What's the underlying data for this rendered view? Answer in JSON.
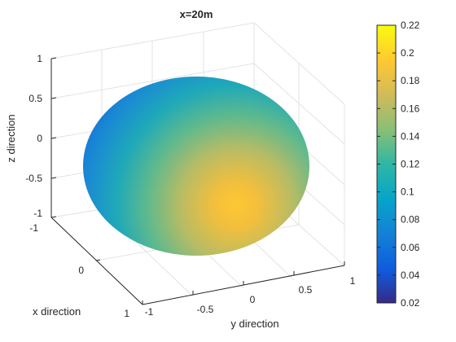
{
  "chart_data": {
    "type": "surface",
    "title": "x=20m",
    "xlabel": "x direction",
    "ylabel": "y direction",
    "zlabel": "z direction",
    "xlim": [
      -1,
      1
    ],
    "ylim": [
      -1,
      1
    ],
    "zlim": [
      -1,
      1
    ],
    "x_ticks": [
      "-1",
      "0",
      "1"
    ],
    "y_ticks": [
      "-1",
      "-0.5",
      "0",
      "0.5",
      "1"
    ],
    "z_ticks": [
      "1",
      "0.5",
      "0",
      "-0.5",
      "-1"
    ],
    "grid": true,
    "surface": {
      "shape": "unit sphere",
      "color_min_value": 0.03,
      "color_max_value": 0.19,
      "peak_region": "lower-front toward +y"
    },
    "colorbar": {
      "range": [
        0.02,
        0.22
      ],
      "ticks": [
        "0.22",
        "0.2",
        "0.18",
        "0.16",
        "0.14",
        "0.12",
        "0.1",
        "0.08",
        "0.06",
        "0.04",
        "0.02"
      ],
      "colormap": "parula",
      "colors": [
        "#352a87",
        "#0f5cdd",
        "#1481d6",
        "#06a4ca",
        "#2eb7a4",
        "#87bf77",
        "#d1bb59",
        "#fec832",
        "#f9fb0e"
      ]
    }
  }
}
